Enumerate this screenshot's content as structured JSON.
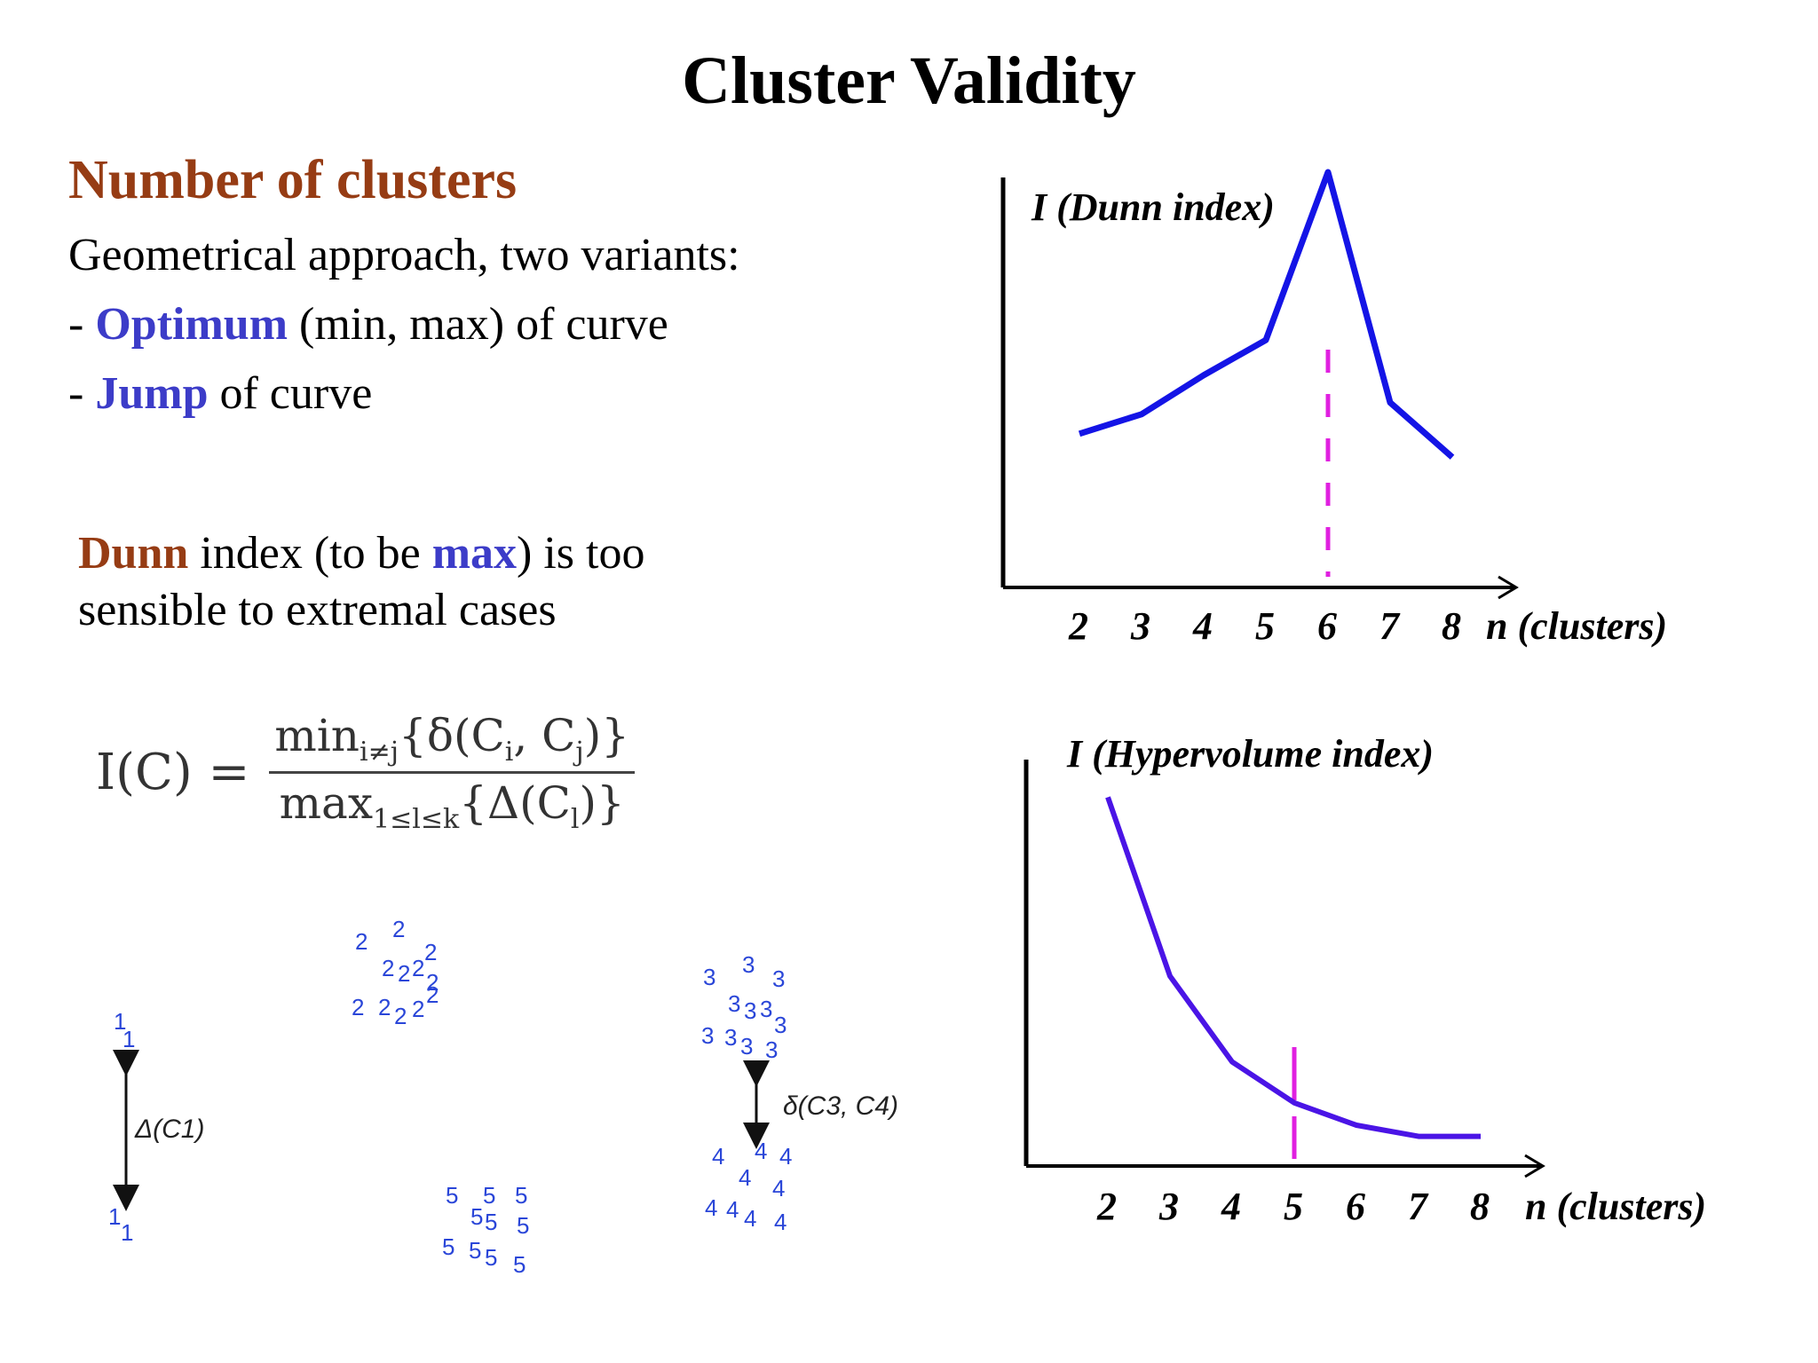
{
  "title": "Cluster Validity",
  "heading": "Number of clusters",
  "intro": "Geometrical approach, two variants:",
  "variants": [
    {
      "prefix": "- ",
      "term": "Optimum",
      "rest": " (min, max) of curve"
    },
    {
      "prefix": "- ",
      "term": "Jump",
      "rest": " of curve"
    }
  ],
  "dunn_note": {
    "term": "Dunn",
    "part1": " index (to be ",
    "max": "max",
    "part2": ") is too",
    "line2": "sensible to extremal cases"
  },
  "formula": {
    "lhs": "I(C) =",
    "numerator": "min",
    "numerator_sub": "i≠j",
    "numerator_rest": "{δ(C",
    "numerator_i": "i",
    "numerator_mid": ", C",
    "numerator_j": "j",
    "numerator_end": ")}",
    "denominator": "max",
    "denominator_sub": "1≤l≤k",
    "denominator_rest": "{Δ(C",
    "denominator_l": "l",
    "denominator_end": ")}"
  },
  "cluster_annotations": {
    "delta_c1": "Δ(C1)",
    "delta_c3_c4": "δ(C3, C4)"
  },
  "chart_data": [
    {
      "type": "line",
      "ylabel": "I (Dunn index)",
      "xlabel": "n (clusters)",
      "x": [
        2,
        3,
        4,
        5,
        6,
        7,
        8
      ],
      "values": [
        0.28,
        0.33,
        0.43,
        0.52,
        0.95,
        0.36,
        0.22
      ],
      "marker_x": 6,
      "marker_color": "#e020e0",
      "line_color": "#1414e6"
    },
    {
      "type": "line",
      "ylabel": "I (Hypervolume index)",
      "xlabel": "n (clusters)",
      "x": [
        2,
        3,
        4,
        5,
        6,
        7,
        8
      ],
      "values": [
        0.98,
        0.5,
        0.27,
        0.16,
        0.1,
        0.07,
        0.07
      ],
      "marker_x": 5,
      "marker_color": "#e020e0",
      "line_color": "#4a14e6"
    }
  ],
  "tick_labels": [
    "2",
    "3",
    "4",
    "5",
    "6",
    "7",
    "8"
  ],
  "colors": {
    "heading": "#963c14",
    "accent": "#3c3cc8",
    "points": "#2a46d8"
  }
}
